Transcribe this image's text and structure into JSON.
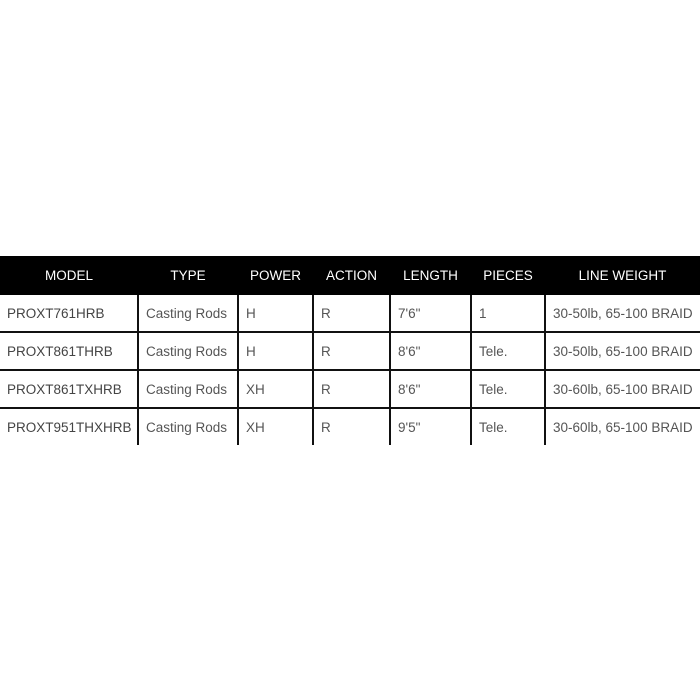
{
  "table": {
    "headers": [
      "MODEL",
      "TYPE",
      "POWER",
      "ACTION",
      "LENGTH",
      "PIECES",
      "LINE WEIGHT"
    ],
    "rows": [
      [
        "PROXT761HRB",
        "Casting Rods",
        "H",
        "R",
        "7'6\"",
        "1",
        "30-50lb, 65-100 BRAID"
      ],
      [
        "PROXT861THRB",
        "Casting Rods",
        "H",
        "R",
        "8'6\"",
        "Tele.",
        "30-50lb, 65-100 BRAID"
      ],
      [
        "PROXT861TXHRB",
        "Casting Rods",
        "XH",
        "R",
        "8'6\"",
        "Tele.",
        "30-60lb, 65-100 BRAID"
      ],
      [
        "PROXT951THXHRB",
        "Casting Rods",
        "XH",
        "R",
        "9'5\"",
        "Tele.",
        "30-60lb, 65-100 BRAID"
      ]
    ]
  }
}
